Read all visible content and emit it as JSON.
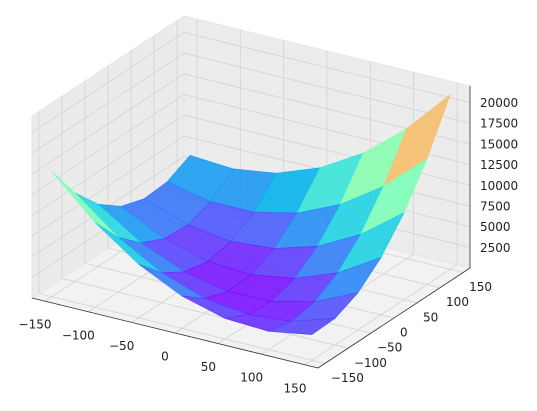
{
  "chart_data": {
    "type": "surface",
    "colormap": "rainbow",
    "x": [
      -150,
      -100,
      -50,
      0,
      50,
      100,
      150
    ],
    "y": [
      -150,
      -100,
      -50,
      0,
      50,
      100,
      150
    ],
    "z": [
      [
        15100,
        10225,
        6500,
        3925,
        2500,
        2225,
        3100
      ],
      [
        10725,
        6600,
        3625,
        1800,
        1125,
        1600,
        3225
      ],
      [
        7500,
        4125,
        1900,
        825,
        900,
        2125,
        4500
      ],
      [
        5425,
        2800,
        1325,
        1000,
        1825,
        3800,
        6925
      ],
      [
        4500,
        2625,
        1900,
        2325,
        3900,
        6625,
        10500
      ],
      [
        4725,
        3600,
        3625,
        4800,
        7125,
        10600,
        15225
      ],
      [
        6100,
        5725,
        6500,
        8425,
        11500,
        15725,
        21100
      ]
    ],
    "xlim": [
      -165,
      165
    ],
    "ylim": [
      -165,
      165
    ],
    "zlim": [
      0,
      22000
    ],
    "xticks": [
      {
        "value": -150,
        "label": "−150"
      },
      {
        "value": -100,
        "label": "−100"
      },
      {
        "value": -50,
        "label": "−50"
      },
      0,
      50,
      100,
      150
    ],
    "yticks": [
      {
        "value": -150,
        "label": "−150"
      },
      {
        "value": -100,
        "label": "−100"
      },
      {
        "value": -50,
        "label": "−50"
      },
      0,
      50,
      100,
      150
    ],
    "zticks": [
      2500,
      5000,
      7500,
      10000,
      12500,
      15000,
      17500,
      20000
    ],
    "grid": true
  }
}
